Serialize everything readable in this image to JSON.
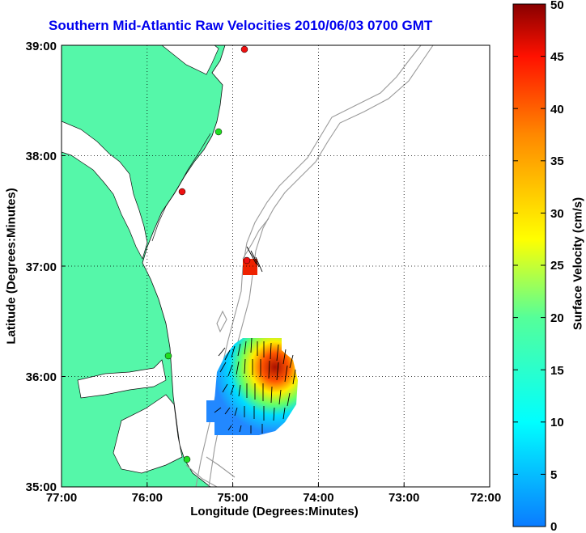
{
  "title": "Southern Mid-Atlantic Raw Velocities 2010/06/03 0700 GMT",
  "axes": {
    "xlabel": "Longitude (Degrees:Minutes)",
    "ylabel": "Latitude (Degrees:Minutes)",
    "x_ticks": [
      "77:00",
      "76:00",
      "75:00",
      "74:00",
      "73:00",
      "72:00"
    ],
    "y_ticks": [
      "39:00",
      "38:00",
      "37:00",
      "36:00",
      "35:00"
    ]
  },
  "colorbar": {
    "label": "Surface Velocity (cm/s)",
    "ticks": [
      "50",
      "45",
      "40",
      "35",
      "30",
      "25",
      "20",
      "15",
      "10",
      "5",
      "0"
    ],
    "min": 0,
    "max": 50,
    "unit": "cm/s"
  },
  "colors": {
    "land": "#55f7a9",
    "title": "#0000ee",
    "station_green": "#22dd22",
    "station_red": "#ee1111"
  },
  "stations": [
    {
      "lon": -74.87,
      "lat": 38.97,
      "color": "red"
    },
    {
      "lon": -75.16,
      "lat": 38.22,
      "color": "green"
    },
    {
      "lon": -75.57,
      "lat": 37.68,
      "color": "red"
    },
    {
      "lon": -74.88,
      "lat": 37.05,
      "color": "red"
    },
    {
      "lon": -75.74,
      "lat": 36.19,
      "color": "green"
    },
    {
      "lon": -75.51,
      "lat": 35.25,
      "color": "green"
    }
  ]
}
